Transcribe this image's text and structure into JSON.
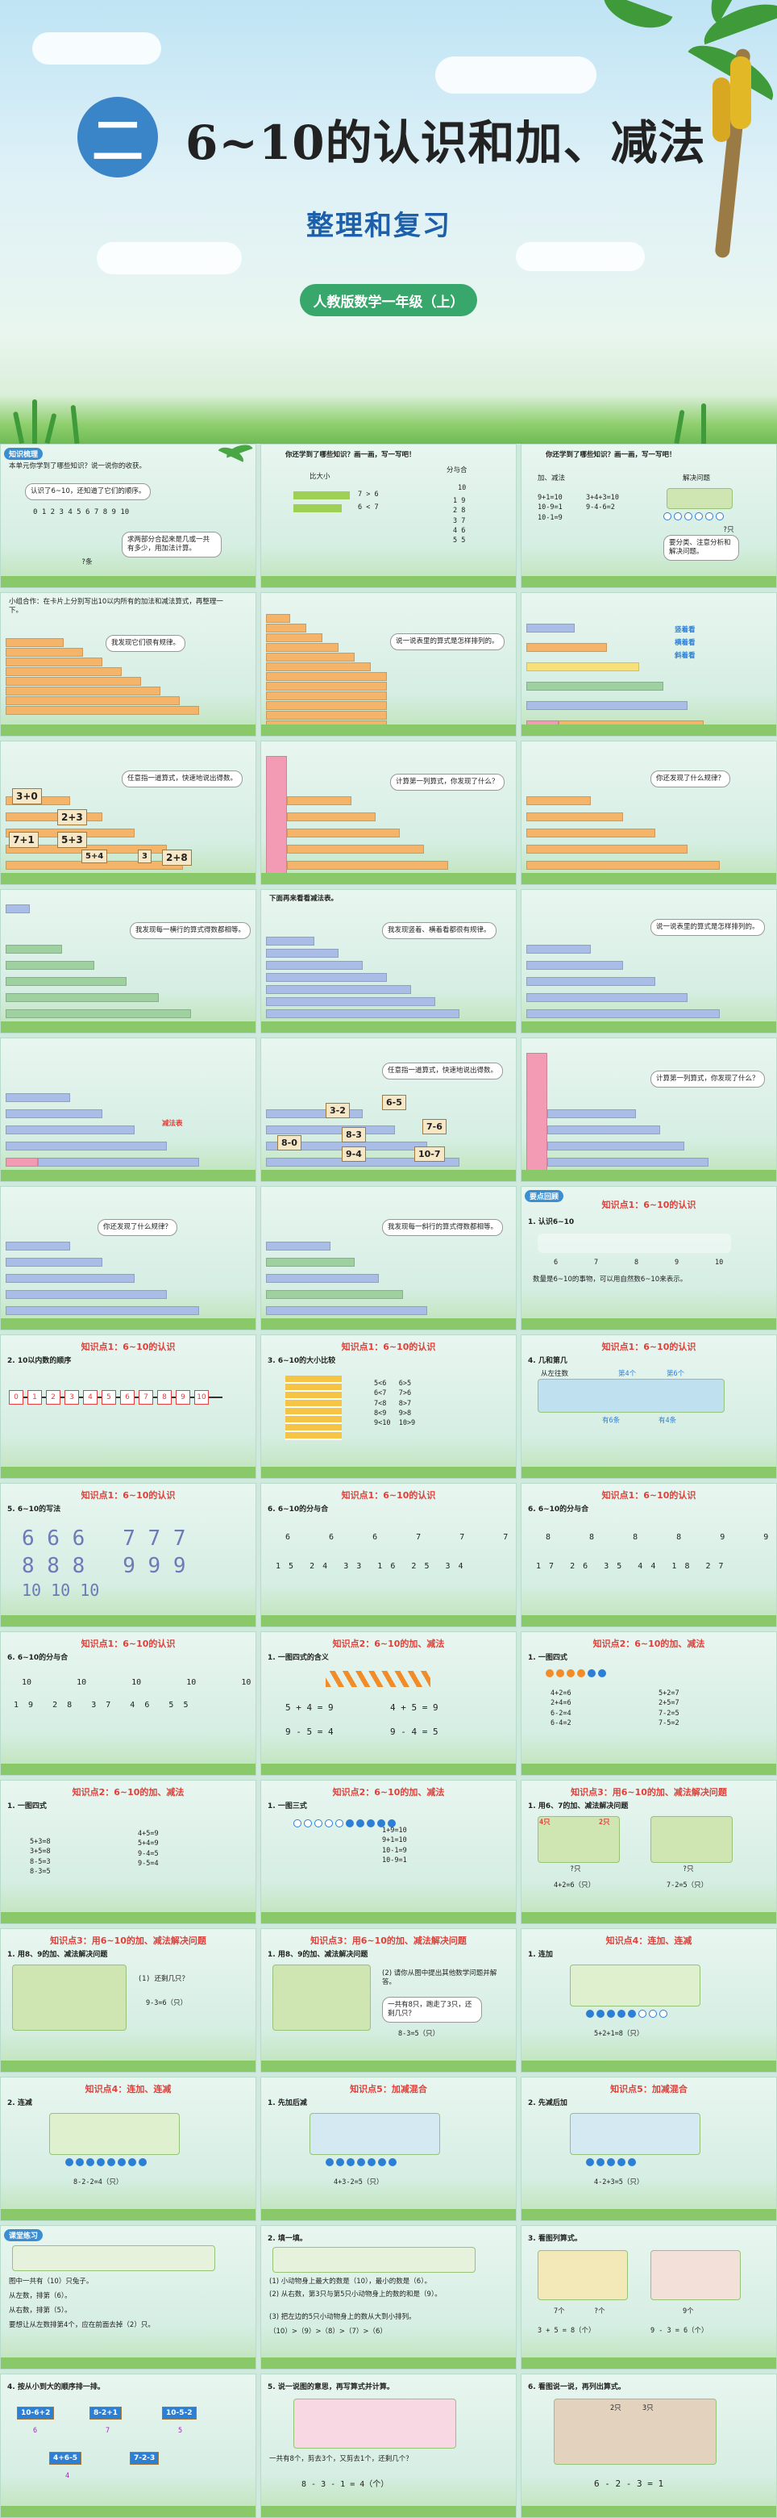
{
  "banner": {
    "unit_number": "二",
    "title": "6~10的认识和加、减法",
    "subtitle": "整理和复习",
    "edition": "人教版数学一年级（上）"
  },
  "sections": {
    "knowledge_sorting": "知识梳理",
    "key_points": "要点回顾",
    "practice": "课堂练习"
  },
  "kp": {
    "kp1": "知识点1：6~10的认识",
    "kp2": "知识点2：6~10的加、减法",
    "kp3": "知识点3：用6~10的加、减法解决问题",
    "kp4": "知识点4：连加、连减",
    "kp5": "知识点5：加减混合"
  },
  "slides": {
    "s1": {
      "bubble": "本单元你学到了哪些知识？说一说你的收获。",
      "line1": "认识了6~10，还知道了它们的顺序。",
      "numbers": "0 1 2 3 4 5 6 7 8 9 10",
      "q": "?条",
      "note": "求两部分合起来是几或一共有多少，用加法计算。"
    },
    "s2": {
      "bubble": "你还学到了哪些知识？画一画，写一写吧！",
      "compare": "比大小",
      "split": "分与合",
      "cmp1": "7 > 6",
      "cmp2": "6 < 7",
      "ten": "10",
      "pairs": "1 9\n2 8\n3 7\n4 6\n5 5"
    },
    "s3": {
      "bubble": "你还学到了哪些知识？画一画，写一写吧！",
      "label": "加、减法",
      "solve": "解决问题",
      "eqs": "9+1=10\n10-9=1\n10-1=9",
      "eqs2": "3+4+3=10\n9-4-6=2",
      "q": "?只",
      "note": "要分类、注意分析和解决问题。"
    },
    "s4": {
      "bubble": "小组合作：在卡片上分别写出10以内所有的加法和减法算式，再整理一下。",
      "speech": "我发现它们很有规律。"
    },
    "s5": {
      "speech": "说一说表里的算式是怎样排列的。"
    },
    "s6": {
      "right1": "竖着看",
      "right2": "横着看",
      "right3": "斜着看"
    },
    "s7": {
      "speech": "任意指一道算式，快速地说出得数。",
      "cards": [
        "3+0",
        "2+3",
        "7+1",
        "5+3",
        "5+4",
        "3",
        "2+8"
      ]
    },
    "s8": {
      "speech": "计算第一列算式，你发现了什么？"
    },
    "s9": {
      "speech": "你还发现了什么规律？"
    },
    "s10": {
      "speech": "我发现每一横行的算式得数都相等。"
    },
    "s11": {
      "heading": "下面再来看看减法表。",
      "speech": "我发现竖着、横着看都很有规律。"
    },
    "s12": {
      "speech": "说一说表里的算式是怎样排列的。"
    },
    "s13": {
      "note": "减法表"
    },
    "s14": {
      "speech": "任意指一道算式，快速地说出得数。",
      "cards": [
        "3-2",
        "6-5",
        "7-6",
        "8-3",
        "9-4",
        "8-0",
        "10-7"
      ]
    },
    "s15": {
      "speech": "计算第一列算式，你发现了什么？"
    },
    "s16": {
      "speech": "你还发现了什么规律？"
    },
    "s17": {
      "speech": "我发现每一斜行的算式得数都相等。"
    },
    "s18": {
      "sec": "要点回顾",
      "heading": "1. 认识6~10",
      "nums": [
        "6",
        "7",
        "8",
        "9",
        "10"
      ],
      "desc": "数量是6~10的事物，可以用自然数6~10来表示。"
    },
    "s19": {
      "heading": "2. 10以内数的顺序",
      "line": [
        "0",
        "1",
        "2",
        "3",
        "4",
        "5",
        "6",
        "7",
        "8",
        "9",
        "10"
      ]
    },
    "s20": {
      "heading": "3. 6~10的大小比较",
      "cmp": "5<6   6>5\n6<7   7>6\n7<8   8>7\n8<9   9>8\n9<10  10>9"
    },
    "s21": {
      "heading": "4. 几和第几",
      "l1": "从左往数",
      "l2": "第4个",
      "l3": "第6个",
      "l4": "有6条",
      "l5": "有4条"
    },
    "s22": {
      "heading": "5. 6~10的写法",
      "row1": "6 6 6   7 7 7",
      "row2": "8 8 8   9 9 9",
      "row3": "10 10 10"
    },
    "s23": {
      "heading": "6. 6~10的分与合",
      "tops": "6  6  6  7  7  7",
      "bottoms": "1 5  2 4  3 3  1 6  2 5  3 4"
    },
    "s24": {
      "heading": "6. 6~10的分与合",
      "tops": "8  8  8  8  9  9",
      "bottoms": "1 7  2 6  3 5  4 4  1 8  2 7"
    },
    "s25": {
      "heading": "6. 6~10的分与合",
      "tops": "10  10  10  10  10",
      "bottoms": "1 9  2 8  3 7  4 6  5 5"
    },
    "s26": {
      "heading": "1. 一图四式的含义",
      "eq1": "5 + 4 = 9",
      "eq2": "4 + 5 = 9",
      "eq3": "9 - 5 = 4",
      "eq4": "9 - 4 = 5"
    },
    "s27": {
      "heading": "1. 一图四式",
      "left": "4+2=6\n2+4=6\n6-2=4\n6-4=2",
      "right": "5+2=7\n2+5=7\n7-2=5\n7-5=2"
    },
    "s28": {
      "heading": "1. 一图四式",
      "left": "5+3=8\n3+5=8\n8-5=3\n8-3=5",
      "right": "4+5=9\n5+4=9\n9-4=5\n9-5=4"
    },
    "s29": {
      "heading": "1. 一图三式",
      "eqs": "1+9=10\n9+1=10\n10-1=9\n10-9=1"
    },
    "s30": {
      "heading": "1. 用6、7的加、减法解决问题",
      "l1": "4只",
      "l2": "2只",
      "l3": "?只",
      "l4": "?只",
      "eq1": "4+2=6（只）",
      "eq2": "7-2=5（只）"
    },
    "s31": {
      "heading": "1. 用8、9的加、减法解决问题",
      "l1": "(1) 还剩几只？",
      "eq": "9-3=6（只）"
    },
    "s32": {
      "heading": "1. 用8、9的加、减法解决问题",
      "t1": "(2) 请你从图中提出其他数学问题并解答。",
      "t2": "一共有8只，跑走了3只，还剩几只？",
      "eq": "8-3=5（只）"
    },
    "s33": {
      "heading": "1. 连加",
      "eq": "5+2+1=8（只）"
    },
    "s34": {
      "heading": "2. 连减",
      "eq": "8-2-2=4（只）"
    },
    "s35": {
      "heading": "1. 先加后减",
      "eq": "4+3-2=5（只）"
    },
    "s36": {
      "heading": "2. 先减后加",
      "eq": "4-2+3=5（只）"
    },
    "s37": {
      "sec": "课堂练习",
      "l1": "图中一共有（10）只兔子。",
      "l2": "从左数，排第（6）。",
      "l3": "从右数，排第（5）。",
      "l4": "要想让从左数排第4个，应在前面去掉（2）只。"
    },
    "s38": {
      "heading": "2. 填一填。",
      "l1": "(1) 小动物身上最大的数是（10），最小的数是（6）。",
      "l2": "(2) 从右数，第3只与第5只小动物身上的数的和是（9）。",
      "l3": "(3) 把左边的5只小动物身上的数从大到小排列。",
      "l4": "（10）>（9）>（8）>（7）>（6）"
    },
    "s39": {
      "heading": "3. 看图列算式。",
      "c1": "7个",
      "c2": "?个",
      "c3": "9个",
      "eq1": "3 + 5 = 8（个）",
      "eq2": "9 - 3 = 6（个）"
    },
    "s40": {
      "heading": "4. 按从小到大的顺序排一排。",
      "cards": [
        "10-6+2",
        "8-2+1",
        "10-5-2",
        "4+6-5",
        "7-2-3"
      ],
      "vals": [
        "6",
        "7",
        "5",
        "4"
      ]
    },
    "s41": {
      "heading": "5. 说一说图的意思，再写算式并计算。",
      "q": "一共有8个，剪去3个，又剪去1个，还剩几个？",
      "eq": "8 - 3 - 1 = 4（个）"
    },
    "s42": {
      "heading": "6. 看图说一说，再列出算式。",
      "l1": "2只",
      "l2": "3只",
      "eq": "6 - 2 - 3 = 1"
    }
  }
}
